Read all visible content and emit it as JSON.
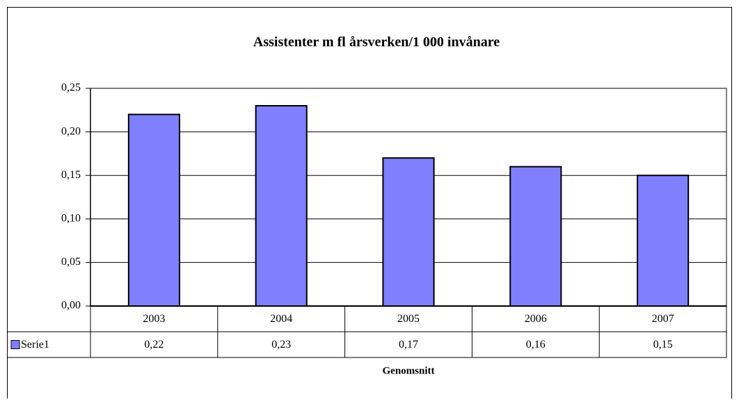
{
  "chart_data": {
    "type": "bar",
    "title": "Assistenter m fl årsverken/1 000 invånare",
    "x_label": "Genomsnitt",
    "categories": [
      "2003",
      "2004",
      "2005",
      "2006",
      "2007"
    ],
    "series": [
      {
        "name": "Serie1",
        "color": "#8080ff",
        "values": [
          0.22,
          0.23,
          0.17,
          0.16,
          0.15
        ],
        "value_labels": [
          "0,22",
          "0,23",
          "0,17",
          "0,16",
          "0,15"
        ]
      }
    ],
    "ylim": [
      0,
      0.25
    ],
    "yticks": [
      {
        "value": 0,
        "label": "0,00"
      },
      {
        "value": 0.05,
        "label": "0,05"
      },
      {
        "value": 0.1,
        "label": "0,10"
      },
      {
        "value": 0.15,
        "label": "0,15"
      },
      {
        "value": 0.2,
        "label": "0,20"
      },
      {
        "value": 0.25,
        "label": "0,25"
      }
    ],
    "grid": true
  }
}
